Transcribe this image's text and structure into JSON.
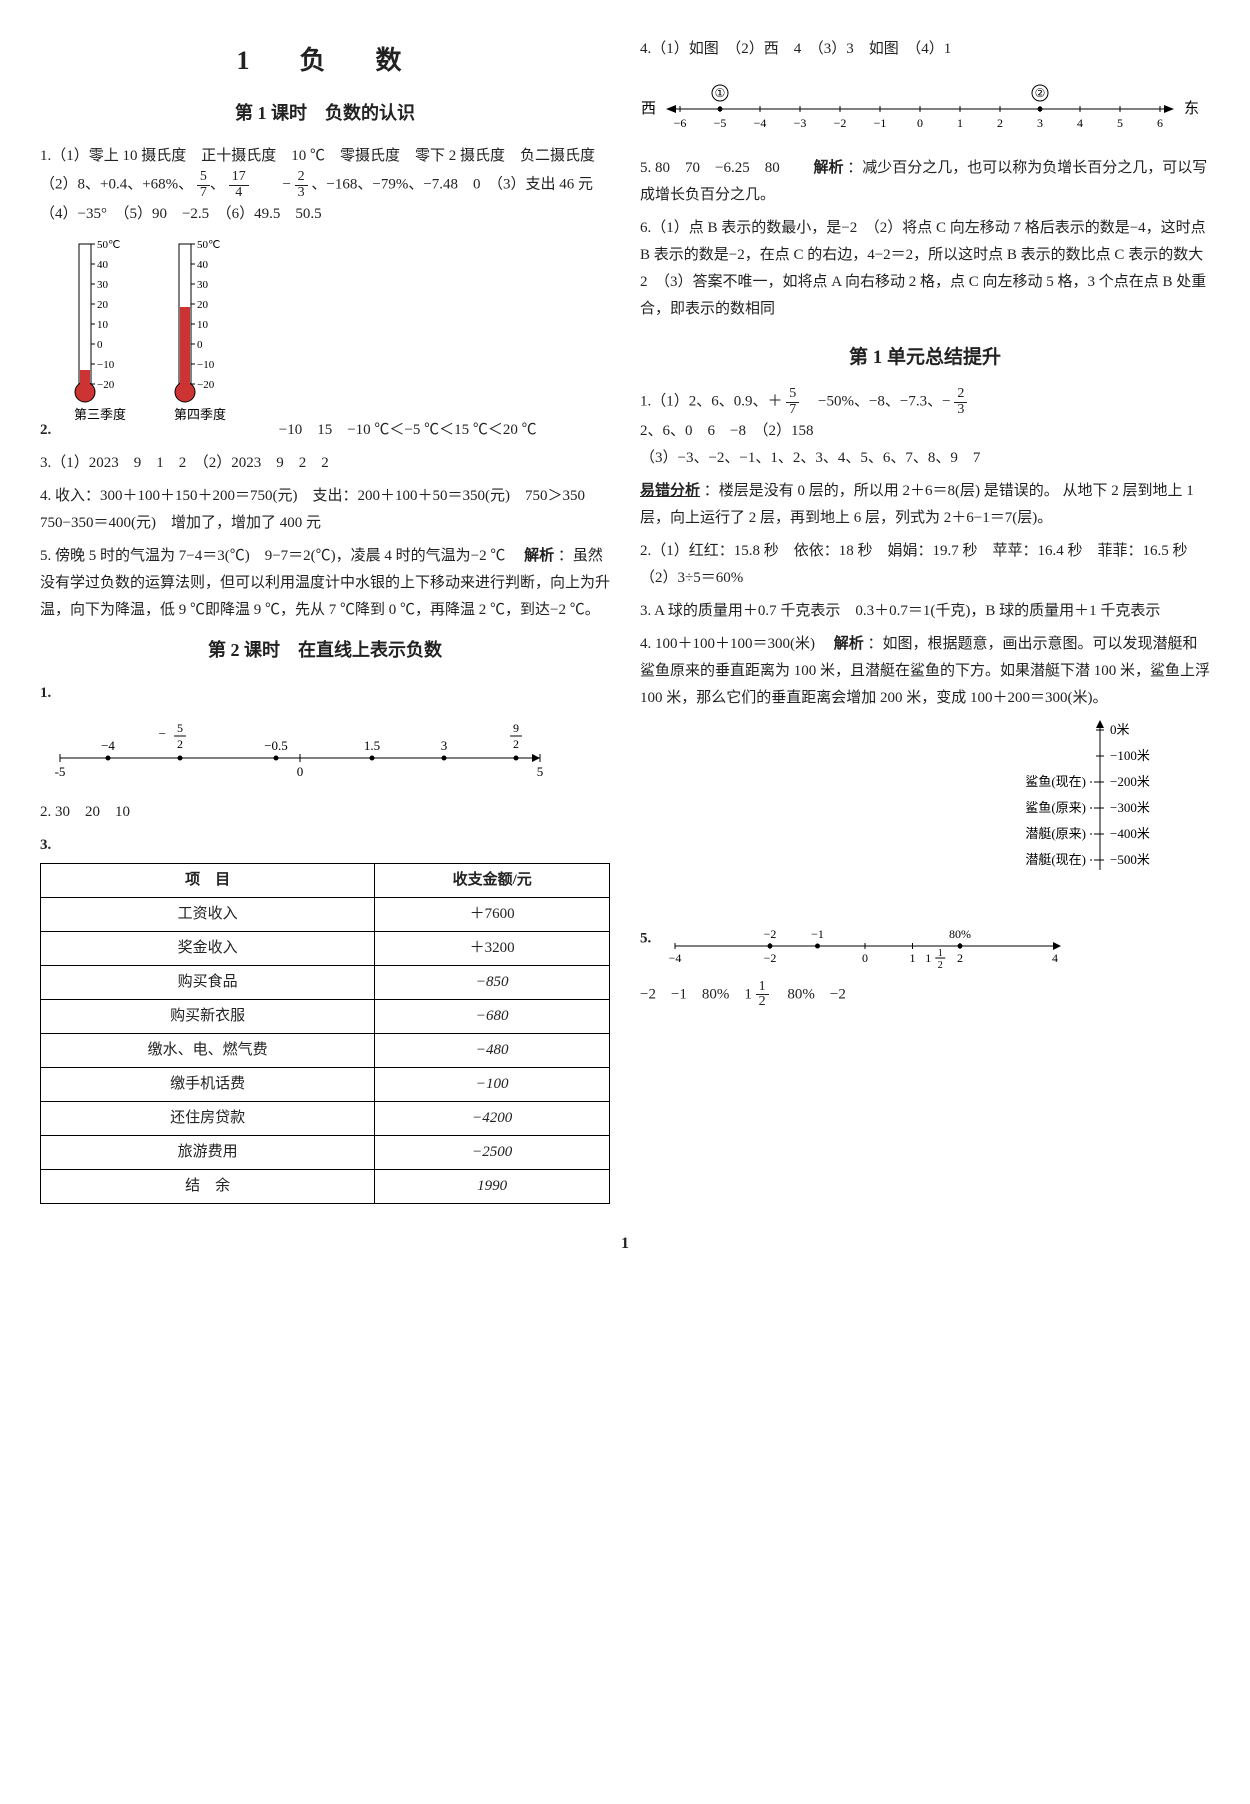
{
  "chapter": {
    "title": "1　负　数"
  },
  "lesson1": {
    "title": "第 1 课时　负数的认识",
    "q1": "1.（1）零上 10 摄氏度　正十摄氏度　10 ℃　零摄氏度　零下 2 摄氏度　负二摄氏度　（2）8、+0.4、+68%、",
    "q1b": "　　−",
    "q1c": "、−168、−79%、−7.48　0　（3）支出 46 元　（4）−35°　（5）90　−2.5　（6）49.5　50.5",
    "frac57_n": "5",
    "frac57_d": "7",
    "frac174_n": "17",
    "frac174_d": "4",
    "frac23_n": "2",
    "frac23_d": "3",
    "q2_lead": "2.",
    "thermo": {
      "scale": [
        "50℃",
        "40",
        "30",
        "20",
        "10",
        "0",
        "−10",
        "−20"
      ],
      "labels": [
        "第三季度",
        "第四季度"
      ],
      "fill1": 0.1,
      "fill2": 0.55,
      "bar_color": "#cc3333",
      "outline": "#000000"
    },
    "q2_tail": "−10　15　−10 ℃＜−5 ℃＜15 ℃＜20 ℃",
    "q3": "3.（1）2023　9　1　2　（2）2023　9　2　2",
    "q4": "4. 收入：300＋100＋150＋200＝750(元)　支出：200＋100＋50＝350(元)　750＞350　750−350＝400(元)　增加了，增加了 400 元",
    "q5": "5. 傍晚 5 时的气温为 7−4＝3(℃)　9−7＝2(℃)，凌晨 4 时的气温为−2 ℃　",
    "q5_hx": "解析",
    "q5b": "：虽然没有学过负数的运算法则，但可以利用温度计中水银的上下移动来进行判断，向上为升温，向下为降温，低 9 ℃即降温 9 ℃，先从 7 ℃降到 0 ℃，再降温 2 ℃，到达−2 ℃。"
  },
  "lesson2": {
    "title": "第 2 课时　在直线上表示负数",
    "nl1": {
      "xmin": -5,
      "xmax": 5,
      "ticks": [
        -5,
        0,
        5
      ],
      "marks": [
        {
          "x": -4,
          "label": "−4"
        },
        {
          "x": -2.5,
          "label": "−5/2",
          "frac_n": "5",
          "frac_d": "2",
          "neg": true
        },
        {
          "x": -0.5,
          "label": "−0.5"
        },
        {
          "x": 1.5,
          "label": "1.5"
        },
        {
          "x": 3,
          "label": "3"
        },
        {
          "x": 4.5,
          "label": "9/2",
          "frac_n": "9",
          "frac_d": "2"
        }
      ],
      "line_color": "#000000"
    },
    "q1_lead": "1.",
    "q2": "2. 30　20　10",
    "q3_lead": "3.",
    "table": {
      "headers": [
        "项　目",
        "收支金额/元"
      ],
      "rows": [
        [
          "工资收入",
          "＋7600"
        ],
        [
          "奖金收入",
          "＋3200"
        ],
        [
          "购买食品",
          "−850"
        ],
        [
          "购买新衣服",
          "−680"
        ],
        [
          "缴水、电、燃气费",
          "−480"
        ],
        [
          "缴手机话费",
          "−100"
        ],
        [
          "还住房贷款",
          "−4200"
        ],
        [
          "旅游费用",
          "−2500"
        ],
        [
          "结　余",
          "1990"
        ]
      ]
    }
  },
  "right": {
    "q4_lead": "4.（1）如图　（2）西　4　（3）3　如图　（4）1",
    "nl4": {
      "xmin": -6,
      "xmax": 6,
      "ticks": [
        -6,
        -5,
        -4,
        -3,
        -2,
        -1,
        0,
        1,
        2,
        3,
        4,
        5,
        6
      ],
      "left_label": "西",
      "right_label": "东",
      "circles": [
        {
          "x": -5,
          "label": "①"
        },
        {
          "x": 3,
          "label": "②"
        }
      ],
      "line_color": "#000000"
    },
    "q5": "5. 80　70　−6.25　80　　",
    "q5_hx": "解析",
    "q5b": "：减少百分之几，也可以称为负增长百分之几，可以写成增长负百分之几。",
    "q6": "6.（1）点 B 表示的数最小，是−2　（2）将点 C 向左移动 7 格后表示的数是−4，这时点 B 表示的数是−2，在点 C 的右边，4−2＝2，所以这时点 B 表示的数比点 C 表示的数大 2　（3）答案不唯一，如将点 A 向右移动 2 格，点 C 向左移动 5 格，3 个点在点 B 处重合，即表示的数相同"
  },
  "unit": {
    "title": "第 1 单元总结提升",
    "q1a": "1.（1）2、6、0.9、＋",
    "frac57b_n": "5",
    "frac57b_d": "7",
    "q1b": "　−50%、−8、−7.3、−",
    "frac23b_n": "2",
    "frac23b_d": "3",
    "q1c": "2、6、0　6　−8　（2）158",
    "q1d": "（3）−3、−2、−1、1、2、3、4、5、6、7、8、9　7",
    "err_label": "易错分析",
    "err": "：楼层是没有 0 层的，所以用 2＋6＝8(层) 是错误的。 从地下 2 层到地上 1 层，向上运行了 2 层，再到地上 6 层，列式为 2＋6−1＝7(层)。",
    "q2": "2.（1）红红：15.8 秒　依依：18 秒　娟娟：19.7 秒　苹苹：16.4 秒　菲菲：16.5 秒　（2）3÷5＝60%",
    "q3": "3. A 球的质量用＋0.7 千克表示　0.3＋0.7＝1(千克)，B 球的质量用＋1 千克表示",
    "q4a": "4. 100＋100＋100＝300(米)　",
    "q4_hx": "解析",
    "q4b": "：如图，根据题意，画出示意图。可以发现潜艇和鲨鱼原来的垂直距离为 100 米，且潜艇在鲨鱼的下方。如果潜艇下潜 100 米，鲨鱼上浮 100 米，那么它们的垂直距离会增加 200 米，变成 100＋200＝300(米)。",
    "depth": {
      "levels": [
        {
          "y": 0,
          "label": "0米"
        },
        {
          "y": 1,
          "label": "−100米"
        },
        {
          "y": 2,
          "label": "−200米",
          "tag": "鲨鱼(现在)"
        },
        {
          "y": 3,
          "label": "−300米",
          "tag": "鲨鱼(原来)"
        },
        {
          "y": 4,
          "label": "−400米",
          "tag": "潜艇(原来)"
        },
        {
          "y": 5,
          "label": "−500米",
          "tag": "潜艇(现在)"
        }
      ],
      "line_color": "#000000"
    },
    "q5_lead": "5.",
    "nl5": {
      "xmin": -4,
      "xmax": 4,
      "ticks": [
        -4,
        -2,
        0,
        1,
        2,
        4
      ],
      "above": [
        {
          "x": -2,
          "label": "−2"
        },
        {
          "x": -1,
          "label": "−1"
        },
        {
          "x": 2,
          "label": "80%"
        }
      ],
      "half_label_n": "1",
      "half_label_d": "2",
      "half_x": 1.5,
      "line_color": "#000000"
    },
    "q5_ans": "−2　−1　80%　1",
    "q5_frac_n": "1",
    "q5_frac_d": "2",
    "q5_ans2": "　80%　−2"
  },
  "pagenum": "1"
}
